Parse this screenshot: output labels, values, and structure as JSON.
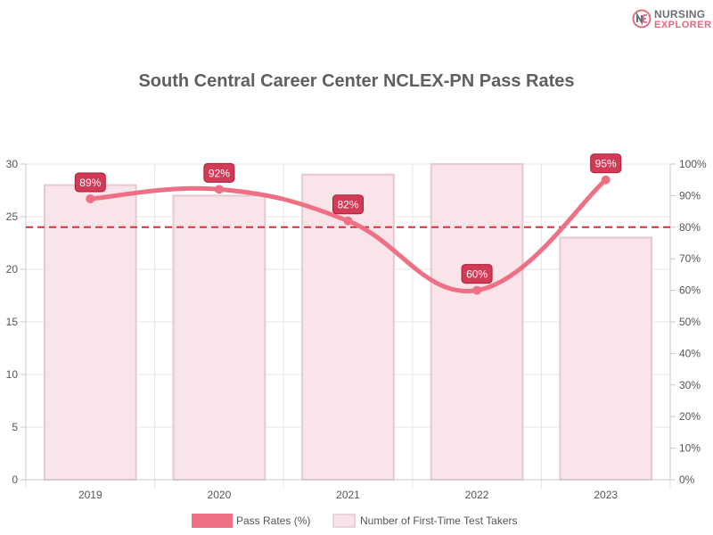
{
  "brand": {
    "line1": "NURSING",
    "line2": "EXPLORER"
  },
  "chart_data": {
    "type": "bar",
    "title": "South Central Career Center NCLEX-PN Pass Rates",
    "categories": [
      "2019",
      "2020",
      "2021",
      "2022",
      "2023"
    ],
    "series": [
      {
        "name": "Pass Rates (%)",
        "type": "line",
        "axis": "right",
        "values": [
          89,
          92,
          82,
          60,
          95
        ],
        "color": "#ef6f84"
      },
      {
        "name": "Number of First-Time Test Takers",
        "type": "bar",
        "axis": "left",
        "values": [
          28,
          27,
          29,
          30,
          23
        ],
        "color": "#f9e4ea",
        "border": "#e7c7d0"
      }
    ],
    "y_left": {
      "min": 0,
      "max": 30,
      "step": 5
    },
    "y_right": {
      "min": 0,
      "max": 100,
      "step": 10,
      "suffix": "%"
    },
    "reference_line": {
      "value": 80,
      "axis": "right",
      "color": "#e02b3c",
      "style": "dashed"
    },
    "data_label_color": "#d23a55",
    "grid": true,
    "legend": "bottom"
  }
}
